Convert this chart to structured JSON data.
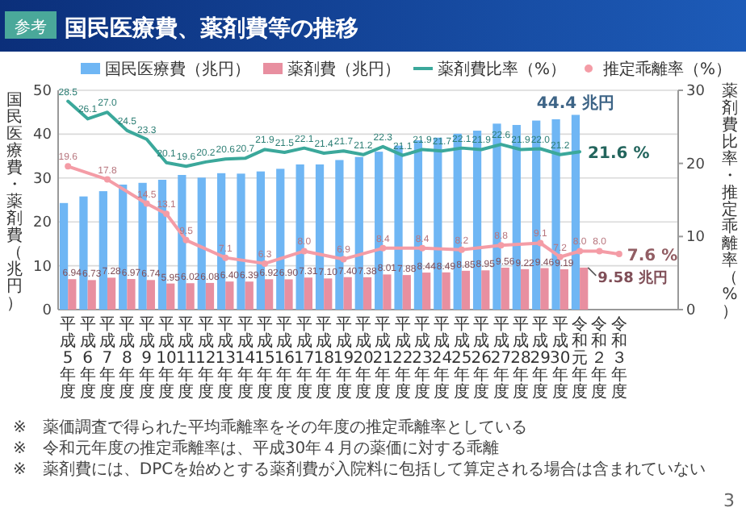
{
  "chart_data": {
    "type": "bar",
    "title": "国民医療費、薬剤費等の推移",
    "ylabel": "国民医療費・薬剤費（兆円）",
    "y2label": "薬剤費比率・推定乖離率（%）",
    "categories": [
      "平成5年度",
      "平成6年度",
      "平成7年度",
      "平成8年度",
      "平成9年度",
      "平成10年度",
      "平成11年度",
      "平成12年度",
      "平成13年度",
      "平成14年度",
      "平成15年度",
      "平成16年度",
      "平成17年度",
      "平成18年度",
      "平成19年度",
      "平成20年度",
      "平成21年度",
      "平成22年度",
      "平成23年度",
      "平成24年度",
      "平成25年度",
      "平成26年度",
      "平成27年度",
      "平成28年度",
      "平成29年度",
      "平成30年度",
      "令和元年度",
      "令和２年度",
      "令和３年度"
    ],
    "ylim": [
      0,
      50
    ],
    "yticks": [
      0,
      10,
      20,
      30,
      40,
      50
    ],
    "y2lim": [
      0,
      30
    ],
    "y2ticks": [
      0,
      10,
      20,
      30
    ],
    "grid": "y",
    "legend": "top",
    "series": [
      {
        "name": "国民医療費（兆円）",
        "color": "#6fb6f4",
        "values": [
          24.3,
          25.8,
          27.0,
          28.5,
          28.9,
          29.6,
          30.7,
          30.1,
          31.1,
          31.0,
          31.5,
          32.1,
          33.1,
          33.1,
          34.1,
          34.8,
          36.0,
          37.4,
          38.6,
          39.2,
          40.1,
          40.8,
          42.4,
          42.1,
          43.1,
          43.4,
          44.4,
          null,
          null
        ],
        "value_labels": [
          null,
          null,
          null,
          null,
          null,
          null,
          null,
          null,
          null,
          null,
          null,
          null,
          null,
          null,
          null,
          null,
          null,
          null,
          null,
          null,
          null,
          null,
          null,
          null,
          null,
          null,
          "44.4 兆円",
          null,
          null
        ]
      },
      {
        "name": "薬剤費（兆円）",
        "color": "#e88fa0",
        "values": [
          6.94,
          6.73,
          7.28,
          6.97,
          6.74,
          5.95,
          6.02,
          6.08,
          6.4,
          6.39,
          6.92,
          6.9,
          7.31,
          7.1,
          7.4,
          7.38,
          8.01,
          7.88,
          8.44,
          8.49,
          8.85,
          8.95,
          9.56,
          9.22,
          9.46,
          9.19,
          9.58,
          null,
          null
        ],
        "value_labels": [
          "6.94",
          "6.73",
          "7.28",
          "6.97",
          "6.74",
          "5.95",
          "6.02",
          "6.08",
          "6.40",
          "6.39",
          "6.92",
          "6.90",
          "7.31",
          "7.10",
          "7.40",
          "7.38",
          "8.01",
          "7.88",
          "8.44",
          "8.49",
          "8.85",
          "8.95",
          "9.56",
          "9.22",
          "9.46",
          "9.19",
          null,
          null,
          null
        ]
      },
      {
        "name": "薬剤費比率（%）",
        "type": "line",
        "axis": "y2",
        "color": "#3ba89b",
        "values": [
          28.5,
          26.1,
          27.0,
          24.5,
          23.3,
          20.1,
          19.6,
          20.2,
          20.6,
          20.7,
          21.9,
          21.5,
          22.1,
          21.4,
          21.7,
          21.2,
          22.3,
          21.1,
          21.9,
          21.7,
          22.1,
          21.9,
          22.6,
          21.9,
          22.0,
          21.2,
          21.6,
          null,
          null
        ],
        "value_labels": [
          "28.5",
          "26.1",
          "27.0",
          "24.5",
          "23.3",
          "20.1",
          "19.6",
          "20.2",
          "20.6",
          "20.7",
          "21.9",
          "21.5",
          "22.1",
          "21.4",
          "21.7",
          "21.2",
          "22.3",
          "21.1",
          "21.9",
          "21.7",
          "22.1",
          "21.9",
          "22.6",
          "21.9",
          "22.0",
          "21.2",
          "21.6 %",
          null,
          null
        ]
      },
      {
        "name": "推定乖離率（%）",
        "type": "line",
        "axis": "y2",
        "marker": "circle",
        "color": "#f49ca6",
        "values": [
          19.6,
          null,
          17.8,
          null,
          14.5,
          13.1,
          9.5,
          null,
          7.1,
          null,
          6.3,
          null,
          8.0,
          null,
          6.9,
          null,
          8.4,
          null,
          8.4,
          null,
          8.2,
          null,
          8.8,
          null,
          9.1,
          7.2,
          8.0,
          8.0,
          7.6
        ],
        "value_labels": [
          "19.6",
          null,
          "17.8",
          null,
          "14.5",
          "13.1",
          "9.5",
          null,
          "7.1",
          null,
          "6.3",
          null,
          "8.0",
          null,
          "6.9",
          null,
          "8.4",
          null,
          "8.4",
          null,
          "8.2",
          null,
          "8.8",
          null,
          "9.1",
          "7.2",
          "8.0",
          "8.0",
          "7.6 %"
        ]
      }
    ],
    "annotations": [
      "参考",
      {
        "text": "9.58 兆円",
        "x": "令和元年度",
        "y": 9.58
      },
      "※　薬価調査で得られた平均乖離率をその年度の推定乖離率としている",
      "※　令和元年度の推定乖離率は、平成30年４月の薬価に対する乖離",
      "※　薬剤費には、DPCを始めとする薬剤費が入院料に包括して算定される場合は含まれていない",
      "3"
    ]
  }
}
